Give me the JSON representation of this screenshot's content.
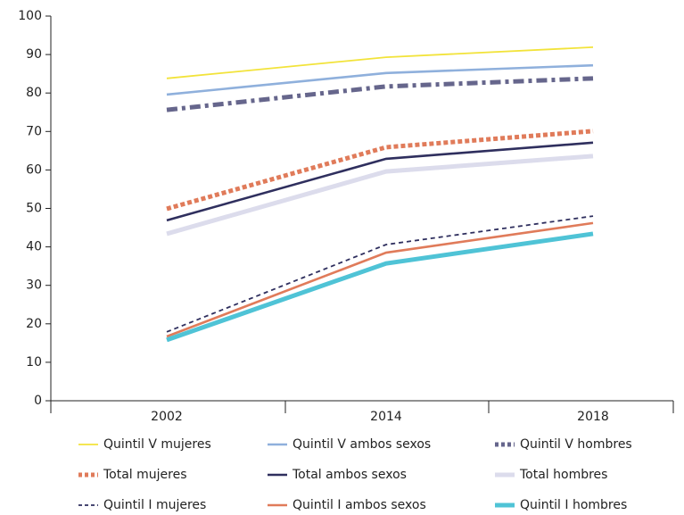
{
  "chart_data": {
    "type": "line",
    "categories": [
      "2002",
      "2014",
      "2018"
    ],
    "ylim": [
      0,
      100
    ],
    "yticks": [
      0,
      10,
      20,
      30,
      40,
      50,
      60,
      70,
      80,
      90,
      100
    ],
    "legend": "bottom",
    "series": [
      {
        "name": "Quintil V mujeres",
        "color": "#f2e33a",
        "dash": "solid",
        "thickness": "thin",
        "values": [
          83.8,
          89.3,
          91.9
        ]
      },
      {
        "name": "Quintil V ambos sexos",
        "color": "#8fb0dc",
        "dash": "solid",
        "thickness": "medium",
        "values": [
          79.6,
          85.2,
          87.2
        ]
      },
      {
        "name": "Quintil V hombres",
        "color": "#66668c",
        "dash": "dashdot",
        "thickness": "thick",
        "values": [
          75.6,
          81.7,
          83.8
        ]
      },
      {
        "name": "Total mujeres",
        "color": "#e07b5a",
        "dash": "dotted",
        "thickness": "thick",
        "values": [
          49.9,
          65.9,
          70.1
        ]
      },
      {
        "name": "Total ambos sexos",
        "color": "#2f2f5e",
        "dash": "solid",
        "thickness": "medium",
        "values": [
          46.9,
          62.9,
          67.1
        ]
      },
      {
        "name": "Total hombres",
        "color": "#dcdcec",
        "dash": "solid",
        "thickness": "thick",
        "values": [
          43.4,
          59.6,
          63.6
        ]
      },
      {
        "name": "Quintil I mujeres",
        "color": "#2f2f5e",
        "dash": "dashed",
        "thickness": "thin",
        "values": [
          17.9,
          40.6,
          48.0
        ]
      },
      {
        "name": "Quintil I ambos sexos",
        "color": "#e07b5a",
        "dash": "solid",
        "thickness": "medium",
        "values": [
          16.7,
          38.5,
          46.2
        ]
      },
      {
        "name": "Quintil I hombres",
        "color": "#4fc3d6",
        "dash": "solid",
        "thickness": "thick",
        "values": [
          15.8,
          35.7,
          43.4
        ]
      }
    ]
  }
}
